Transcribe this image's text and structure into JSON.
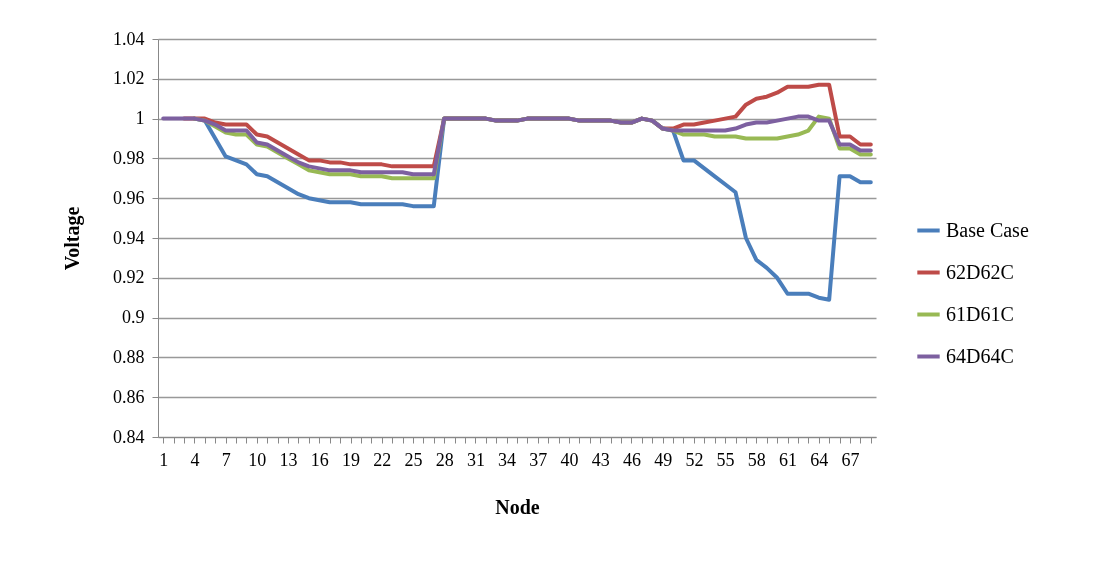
{
  "chart_data": {
    "type": "line",
    "xlabel": "Node",
    "ylabel": "Voltage",
    "categories": [
      "1",
      null,
      null,
      "4",
      null,
      null,
      "7",
      null,
      null,
      "10",
      null,
      null,
      "13",
      null,
      null,
      "16",
      null,
      null,
      "19",
      null,
      null,
      "22",
      null,
      null,
      "25",
      null,
      null,
      "28",
      null,
      null,
      "31",
      null,
      null,
      "34",
      null,
      null,
      "37",
      null,
      null,
      "40",
      null,
      null,
      "43",
      null,
      null,
      "46",
      null,
      null,
      "49",
      null,
      null,
      "52",
      null,
      null,
      "55",
      null,
      null,
      "58",
      null,
      null,
      "61",
      null,
      null,
      "64",
      null,
      null,
      "67",
      null,
      null
    ],
    "ylim": [
      0.84,
      1.04
    ],
    "yticks": [
      0.84,
      0.86,
      0.88,
      0.9,
      0.92,
      0.94,
      0.96,
      0.98,
      1,
      1.02,
      1.04
    ],
    "grid": "y",
    "legend": "right",
    "line_style": "solid",
    "marker": "none",
    "series": [
      {
        "name": "Base Case",
        "color": "#4a7ebb",
        "values": [
          null,
          null,
          null,
          1.0,
          0.999,
          0.99,
          0.981,
          0.979,
          0.977,
          0.972,
          0.971,
          0.968,
          0.965,
          0.962,
          0.96,
          0.959,
          0.958,
          0.958,
          0.958,
          0.957,
          0.957,
          0.957,
          0.957,
          0.957,
          0.956,
          0.956,
          0.956,
          1.0,
          1.0,
          1.0,
          1.0,
          1.0,
          0.999,
          0.999,
          0.999,
          1.0,
          1.0,
          1.0,
          1.0,
          1.0,
          0.999,
          0.999,
          0.999,
          0.999,
          0.998,
          0.998,
          1.0,
          0.999,
          0.995,
          0.994,
          0.979,
          0.979,
          0.975,
          0.971,
          0.967,
          0.963,
          0.94,
          0.929,
          0.925,
          0.92,
          0.912,
          0.912,
          0.912,
          0.91,
          0.909,
          0.971,
          0.971,
          0.968,
          0.968
        ]
      },
      {
        "name": "62D62C",
        "color": "#be4b48",
        "values": [
          null,
          null,
          1.0,
          1.0,
          1.0,
          0.998,
          0.997,
          0.997,
          0.997,
          0.992,
          0.991,
          0.988,
          0.985,
          0.982,
          0.979,
          0.979,
          0.978,
          0.978,
          0.977,
          0.977,
          0.977,
          0.977,
          0.976,
          0.976,
          0.976,
          0.976,
          0.976,
          1.0,
          1.0,
          1.0,
          1.0,
          1.0,
          0.999,
          0.999,
          0.999,
          1.0,
          1.0,
          1.0,
          1.0,
          1.0,
          0.999,
          0.999,
          0.999,
          0.999,
          0.998,
          0.998,
          1.0,
          0.999,
          0.995,
          0.995,
          0.997,
          0.997,
          0.998,
          0.999,
          1.0,
          1.001,
          1.007,
          1.01,
          1.011,
          1.013,
          1.016,
          1.016,
          1.016,
          1.017,
          1.017,
          0.991,
          0.991,
          0.987,
          0.987
        ]
      },
      {
        "name": "61D61C",
        "color": "#98b954",
        "values": [
          null,
          null,
          null,
          1.0,
          0.999,
          0.996,
          0.993,
          0.992,
          0.992,
          0.987,
          0.986,
          0.983,
          0.98,
          0.977,
          0.974,
          0.973,
          0.972,
          0.972,
          0.972,
          0.971,
          0.971,
          0.971,
          0.97,
          0.97,
          0.97,
          0.97,
          0.97,
          1.0,
          1.0,
          1.0,
          1.0,
          1.0,
          0.999,
          0.999,
          0.999,
          1.0,
          1.0,
          1.0,
          1.0,
          1.0,
          0.999,
          0.999,
          0.999,
          0.999,
          0.998,
          0.998,
          1.0,
          0.999,
          0.995,
          0.994,
          0.992,
          0.992,
          0.992,
          0.991,
          0.991,
          0.991,
          0.99,
          0.99,
          0.99,
          0.99,
          0.991,
          0.992,
          0.994,
          1.001,
          1.0,
          0.985,
          0.985,
          0.982,
          0.982
        ]
      },
      {
        "name": "64D64C",
        "color": "#7d60a0",
        "values": [
          1.0,
          1.0,
          1.0,
          1.0,
          0.999,
          0.997,
          0.994,
          0.994,
          0.994,
          0.988,
          0.987,
          0.984,
          0.981,
          0.978,
          0.976,
          0.975,
          0.974,
          0.974,
          0.974,
          0.973,
          0.973,
          0.973,
          0.973,
          0.973,
          0.972,
          0.972,
          0.972,
          1.0,
          1.0,
          1.0,
          1.0,
          1.0,
          0.999,
          0.999,
          0.999,
          1.0,
          1.0,
          1.0,
          1.0,
          1.0,
          0.999,
          0.999,
          0.999,
          0.999,
          0.998,
          0.998,
          1.0,
          0.999,
          0.995,
          0.994,
          0.994,
          0.994,
          0.994,
          0.994,
          0.994,
          0.995,
          0.997,
          0.998,
          0.998,
          0.999,
          1.0,
          1.001,
          1.001,
          0.999,
          0.999,
          0.987,
          0.987,
          0.984,
          0.984
        ]
      }
    ]
  }
}
